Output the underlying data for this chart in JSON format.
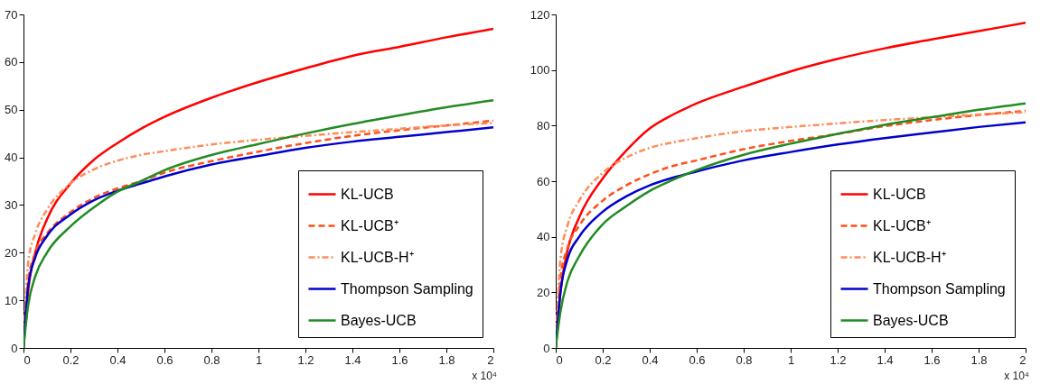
{
  "chart_data": [
    {
      "type": "line",
      "x": [
        0,
        0.02,
        0.05,
        0.1,
        0.2,
        0.3,
        0.4,
        0.5,
        0.6,
        0.8,
        1.0,
        1.2,
        1.4,
        1.6,
        1.8,
        2.0
      ],
      "xlim": [
        0,
        2
      ],
      "xticks": [
        0,
        0.2,
        0.4,
        0.6,
        0.8,
        1,
        1.2,
        1.4,
        1.6,
        1.8,
        2
      ],
      "ylim": [
        0,
        70
      ],
      "yticks": [
        0,
        10,
        20,
        30,
        40,
        50,
        60,
        70
      ],
      "grid": false,
      "legend": "bottom right",
      "annotations": [
        "x 10⁴"
      ],
      "series": [
        {
          "name": "KL-UCB",
          "color": "#ff0000",
          "line_style": "solid",
          "values": [
            0,
            12,
            20,
            27,
            34.5,
            39.5,
            43,
            46,
            48.5,
            52.5,
            55.8,
            58.7,
            61.3,
            63.2,
            65.2,
            67
          ]
        },
        {
          "name": "KL-UCB⁺",
          "color": "#ff5019",
          "line_style": "dashed",
          "values": [
            0,
            14,
            20,
            24,
            28.5,
            31.5,
            33.5,
            35,
            36.8,
            39.2,
            41.2,
            43,
            44.5,
            45.7,
            46.7,
            47.7
          ]
        },
        {
          "name": "KL-UCB-H⁺",
          "color": "#ff8c5a",
          "line_style": "dashdot",
          "values": [
            0,
            18,
            24,
            29,
            34.5,
            37.5,
            39.3,
            40.5,
            41.3,
            42.7,
            43.7,
            44.5,
            45.3,
            46,
            46.7,
            47.2
          ]
        },
        {
          "name": "Thompson Sampling",
          "color": "#0000cc",
          "line_style": "solid",
          "values": [
            0,
            13,
            19,
            23.5,
            28,
            31,
            33,
            34.5,
            36,
            38.5,
            40.3,
            42,
            43.3,
            44.3,
            45.3,
            46.3
          ]
        },
        {
          "name": "Bayes-UCB",
          "color": "#228b22",
          "line_style": "solid",
          "values": [
            0,
            9,
            15,
            20,
            25.5,
            29.5,
            32.8,
            35,
            37.3,
            40.5,
            42.8,
            45,
            47,
            48.8,
            50.5,
            52
          ]
        }
      ]
    },
    {
      "type": "line",
      "x": [
        0,
        0.02,
        0.05,
        0.1,
        0.2,
        0.3,
        0.4,
        0.5,
        0.6,
        0.8,
        1.0,
        1.2,
        1.4,
        1.6,
        1.8,
        2.0
      ],
      "xlim": [
        0,
        2
      ],
      "xticks": [
        0,
        0.2,
        0.4,
        0.6,
        0.8,
        1,
        1.2,
        1.4,
        1.6,
        1.8,
        2
      ],
      "ylim": [
        0,
        120
      ],
      "yticks": [
        0,
        20,
        40,
        60,
        80,
        100,
        120
      ],
      "grid": false,
      "legend": "bottom right",
      "annotations": [
        "x 10⁴"
      ],
      "series": [
        {
          "name": "KL-UCB",
          "color": "#ff0000",
          "line_style": "solid",
          "values": [
            0,
            20,
            35,
            47,
            61,
            71,
            79,
            84,
            88,
            94,
            99.5,
            104,
            107.8,
            111,
            114,
            117
          ]
        },
        {
          "name": "KL-UCB⁺",
          "color": "#ff5019",
          "line_style": "dashed",
          "values": [
            0,
            25,
            36,
            44,
            53,
            58.5,
            62.5,
            65.5,
            67.5,
            71.5,
            74.5,
            77,
            79.8,
            82,
            83.8,
            85.3
          ]
        },
        {
          "name": "KL-UCB-H⁺",
          "color": "#ff8c5a",
          "line_style": "dashdot",
          "values": [
            0,
            32,
            44,
            53,
            63,
            68.5,
            72,
            74,
            75.5,
            78,
            79.5,
            80.8,
            82,
            83,
            84,
            84.8
          ]
        },
        {
          "name": "Thompson Sampling",
          "color": "#0000cc",
          "line_style": "solid",
          "values": [
            0,
            20,
            32,
            40,
            49,
            54.5,
            58.5,
            61.3,
            63.5,
            67.5,
            70.5,
            73.2,
            75.5,
            77.5,
            79.5,
            81.2
          ]
        },
        {
          "name": "Bayes-UCB",
          "color": "#228b22",
          "line_style": "solid",
          "values": [
            0,
            13,
            24,
            33,
            44.5,
            51,
            56.5,
            60.5,
            64,
            69.5,
            73.5,
            77,
            80.3,
            83,
            85.7,
            88
          ]
        }
      ]
    }
  ]
}
